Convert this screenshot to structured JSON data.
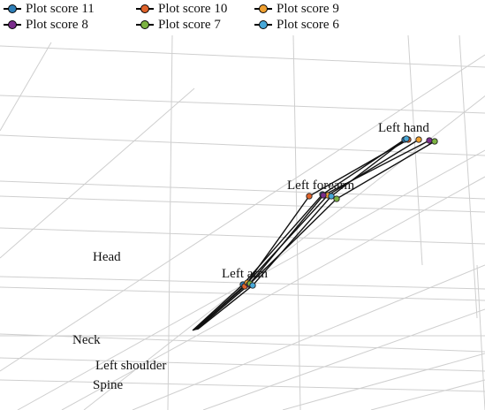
{
  "chart_data": {
    "type": "line",
    "view": "3d",
    "grid": true,
    "legend_placement": "top-left",
    "series": [
      {
        "name": "Plot score 11",
        "color": "#2e7fb8",
        "points": [
          "Left arm",
          "Left forearm",
          "Left hand"
        ]
      },
      {
        "name": "Plot score 10",
        "color": "#e0632b",
        "points": [
          "Left arm",
          "Left forearm",
          "Left hand"
        ]
      },
      {
        "name": "Plot score 9",
        "color": "#f0a030",
        "points": [
          "Left arm",
          "Left forearm",
          "Left hand"
        ]
      },
      {
        "name": "Plot score 8",
        "color": "#7a2d8c",
        "points": [
          "Left arm",
          "Left forearm",
          "Left hand"
        ]
      },
      {
        "name": "Plot score 7",
        "color": "#7cb342",
        "points": [
          "Left arm",
          "Left forearm",
          "Left hand"
        ]
      },
      {
        "name": "Plot score 6",
        "color": "#48a8d8",
        "points": [
          "Left arm",
          "Left forearm",
          "Left hand"
        ]
      }
    ],
    "joint_labels": [
      "Left hand",
      "Left forearm",
      "Left arm",
      "Head",
      "Neck",
      "Left shoulder",
      "Spine"
    ]
  }
}
